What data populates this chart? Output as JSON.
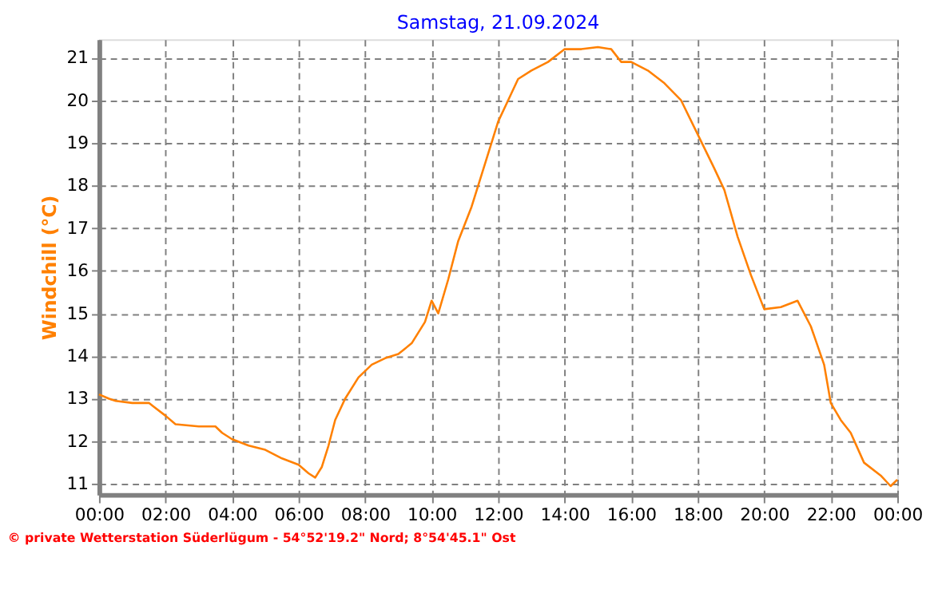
{
  "chart_data": {
    "type": "line",
    "title": "Samstag, 21.09.2024",
    "ylabel": "Windchill  (°C)",
    "annotations": [
      "© private Wetterstation Süderlügum - 54°52'19.2\" Nord; 8°54'45.1\" Ost"
    ],
    "xlim": [
      0,
      24
    ],
    "ylim": [
      10.75,
      21.43
    ],
    "xticks": [
      {
        "value": 0,
        "label": "00:00"
      },
      {
        "value": 2,
        "label": "02:00"
      },
      {
        "value": 4,
        "label": "04:00"
      },
      {
        "value": 6,
        "label": "06:00"
      },
      {
        "value": 8,
        "label": "08:00"
      },
      {
        "value": 10,
        "label": "10:00"
      },
      {
        "value": 12,
        "label": "12:00"
      },
      {
        "value": 14,
        "label": "14:00"
      },
      {
        "value": 16,
        "label": "16:00"
      },
      {
        "value": 18,
        "label": "18:00"
      },
      {
        "value": 20,
        "label": "20:00"
      },
      {
        "value": 22,
        "label": "22:00"
      },
      {
        "value": 24,
        "label": "00:00"
      }
    ],
    "yticks": [
      11,
      12,
      13,
      14,
      15,
      16,
      17,
      18,
      19,
      20,
      21
    ],
    "grid": true,
    "marker": "none",
    "line_style": "solid",
    "series": [
      {
        "color": "#ff8000",
        "x": [
          0,
          0.3,
          0.5,
          1.0,
          1.5,
          2.0,
          2.3,
          3.0,
          3.5,
          3.7,
          4.0,
          4.5,
          5.0,
          5.5,
          6.0,
          6.3,
          6.5,
          6.7,
          6.9,
          7.1,
          7.4,
          7.8,
          8.2,
          8.6,
          9.0,
          9.4,
          9.8,
          10.0,
          10.2,
          10.5,
          10.8,
          11.2,
          11.6,
          12.0,
          12.3,
          12.6,
          13.0,
          13.5,
          14.0,
          14.5,
          15.0,
          15.4,
          15.7,
          16.0,
          16.5,
          17.0,
          17.5,
          18.0,
          18.5,
          18.8,
          19.2,
          19.6,
          20.0,
          20.5,
          21.0,
          21.4,
          21.8,
          22.0,
          22.3,
          22.6,
          23.0,
          23.5,
          23.8,
          24.0
        ],
        "values": [
          13.1,
          13.0,
          12.95,
          12.9,
          12.9,
          12.6,
          12.4,
          12.35,
          12.35,
          12.2,
          12.05,
          11.9,
          11.8,
          11.6,
          11.45,
          11.25,
          11.15,
          11.4,
          11.9,
          12.5,
          13.0,
          13.5,
          13.8,
          13.95,
          14.05,
          14.3,
          14.8,
          15.3,
          15.0,
          15.8,
          16.7,
          17.5,
          18.5,
          19.5,
          20.0,
          20.5,
          20.7,
          20.9,
          21.2,
          21.2,
          21.25,
          21.2,
          20.9,
          20.9,
          20.7,
          20.4,
          20.0,
          19.2,
          18.4,
          17.9,
          16.8,
          15.9,
          15.1,
          15.15,
          15.3,
          14.7,
          13.8,
          12.9,
          12.5,
          12.2,
          11.5,
          11.2,
          10.95,
          11.1
        ]
      }
    ]
  }
}
